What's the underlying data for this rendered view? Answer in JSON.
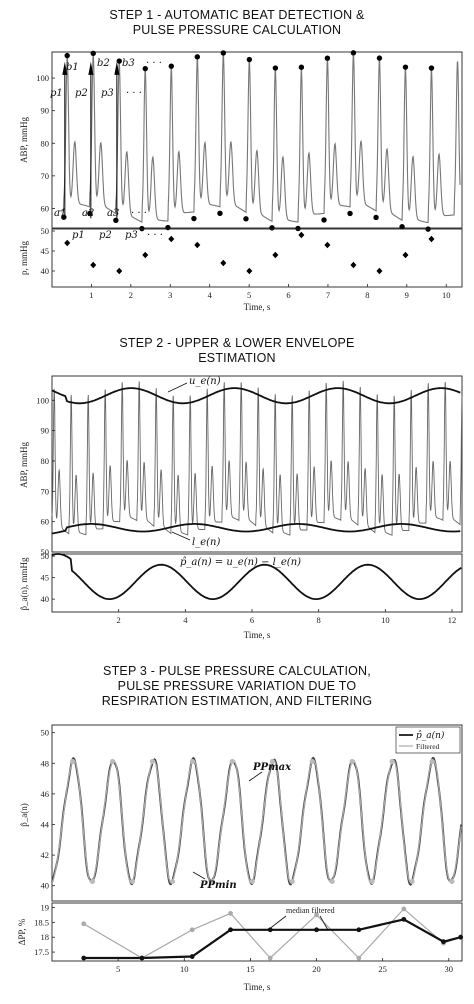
{
  "step1": {
    "title_line1": "STEP 1 - AUTOMATIC BEAT DETECTION &",
    "title_line2": "PULSE PRESSURE CALCULATION",
    "top_ylabel": "ABP, mmHg",
    "top_yticks": [
      "60",
      "70",
      "80",
      "90",
      "100"
    ],
    "peak_labels": [
      "b1",
      "b2",
      "b3",
      "· · ·"
    ],
    "pp_labels": [
      "p1",
      "p2",
      "p3",
      "· · ·"
    ],
    "trough_labels": [
      "a1",
      "a2",
      "a3",
      "· · ·"
    ],
    "bottom_ylabel": "p, mmHg",
    "bottom_yticks": [
      "40",
      "45",
      "50"
    ],
    "xticks": [
      "1",
      "2",
      "3",
      "4",
      "5",
      "6",
      "7",
      "8",
      "9",
      "10"
    ],
    "xlabel": "Time, s",
    "pulse_pressures": [
      47,
      41.5,
      40,
      44,
      48,
      46.5,
      42,
      40,
      44,
      49,
      46.5,
      41.5,
      40,
      44,
      48
    ]
  },
  "step2": {
    "title_line1": "STEP 2 - UPPER & LOWER ENVELOPE",
    "title_line2": "ESTIMATION",
    "top_ylabel": "ABP, mmHg",
    "top_yticks": [
      "50",
      "60",
      "70",
      "80",
      "90",
      "100"
    ],
    "upper_label": "u_e(n)",
    "lower_label": "l_e(n)",
    "bottom_ylabel": "p̂_a(n), mmHg",
    "bottom_yticks": [
      "40",
      "45",
      "50"
    ],
    "formula": "p̂_a(n) = u_e(n) − l_e(n)",
    "xticks": [
      "2",
      "4",
      "6",
      "8",
      "10",
      "12"
    ],
    "xlabel": "Time, s"
  },
  "step3": {
    "title_line1": "STEP 3 - PULSE PRESSURE CALCULATION,",
    "title_line2": "PULSE PRESSURE VARIATION DUE TO",
    "title_line3": "RESPIRATION ESTIMATION, AND FILTERING",
    "top_ylabel": "p̂_a(n)",
    "top_yticks": [
      "40",
      "42",
      "44",
      "46",
      "48",
      "50"
    ],
    "legend_raw": "p̂_a(n)",
    "legend_filtered": "Filtered",
    "pp_max_label": "PPmax",
    "pp_min_label": "PPmin",
    "bottom_ylabel": "ΔPP, %",
    "bottom_yticks": [
      "17.5",
      "18",
      "18.5",
      "19"
    ],
    "median_label": "median filtered",
    "xticks": [
      "5",
      "10",
      "15",
      "20",
      "25",
      "30"
    ],
    "xlabel": "Time, s",
    "dpp_raw": [
      18.45,
      17.3,
      18.25,
      18.8,
      17.3,
      18.75,
      17.3,
      18.95,
      17.8,
      18.0
    ],
    "dpp_median": [
      17.3,
      17.3,
      17.35,
      18.25,
      18.25,
      18.25,
      18.25,
      18.6,
      17.85,
      18.0
    ]
  }
}
